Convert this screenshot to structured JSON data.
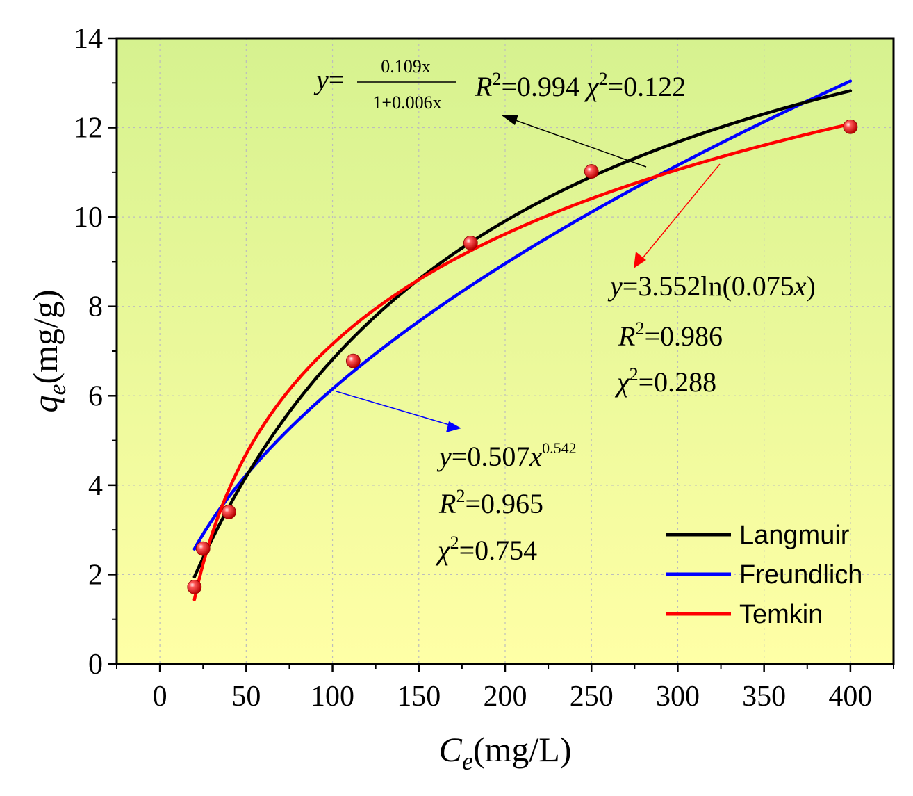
{
  "chart_data": {
    "type": "scatter",
    "xlabel": {
      "main": "C",
      "sub": "e",
      "unit": "(mg/L)"
    },
    "ylabel": {
      "main": "q",
      "sub": "e",
      "unit": "(mg/g)"
    },
    "xlim": [
      -25,
      425
    ],
    "ylim": [
      0,
      14
    ],
    "xticks": [
      0,
      50,
      100,
      150,
      200,
      250,
      300,
      350,
      400
    ],
    "yticks": [
      0,
      2,
      4,
      6,
      8,
      10,
      12,
      14
    ],
    "grid": true,
    "background_gradient": [
      "#d6f28f",
      "#ffffa6"
    ],
    "points": {
      "x": [
        20,
        25,
        40,
        112,
        180,
        250,
        400
      ],
      "y": [
        1.72,
        2.58,
        3.4,
        6.78,
        9.42,
        11.02,
        12.02
      ],
      "color": "#e00000"
    },
    "series": [
      {
        "name": "Langmuir",
        "model": "langmuir",
        "a": 0.109,
        "b": 0.006,
        "color": "#000000",
        "x_range": [
          20,
          400
        ]
      },
      {
        "name": "Freundlich",
        "model": "freundlich",
        "a": 0.507,
        "n": 0.542,
        "color": "#0000ff",
        "x_range": [
          20,
          400
        ]
      },
      {
        "name": "Temkin",
        "model": "temkin",
        "a": 3.552,
        "b": 0.075,
        "color": "#ff0000",
        "x_range": [
          20,
          400
        ]
      }
    ],
    "legend_position": "bottom-right",
    "annotations": {
      "langmuir": {
        "eq_y": "y",
        "eq_eq": "=",
        "num": "0.109x",
        "den": "1+0.006x",
        "r2": "=0.994",
        "chi2": "=0.122"
      },
      "temkin": {
        "eq_y": "y",
        "eq_rest": "=3.552ln(0.075",
        "eq_x": "x",
        "eq_close": ")",
        "r2": "=0.986",
        "chi2": "=0.288"
      },
      "freundlich": {
        "eq_y": "y",
        "eq_rest": "=0.507",
        "eq_x": "x",
        "eq_exp": "0.542",
        "r2": "=0.965",
        "chi2": "=0.754"
      }
    },
    "symbols": {
      "R": "R",
      "chi": "χ",
      "two": "2"
    }
  }
}
